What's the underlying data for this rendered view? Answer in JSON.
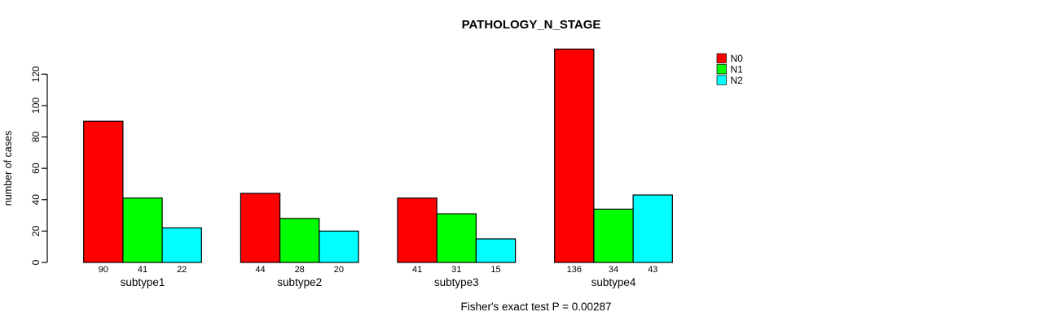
{
  "page": {
    "background": "#FFFFFF",
    "text_color": "#000000"
  },
  "chart_data": {
    "type": "bar",
    "title": "PATHOLOGY_N_STAGE",
    "ylabel": "number of cases",
    "xlabel": "",
    "footer_note": "Fisher's exact test P = 0.00287",
    "categories": [
      "subtype1",
      "subtype2",
      "subtype3",
      "subtype4"
    ],
    "series": [
      {
        "name": "N0",
        "color": "#FF0000",
        "values": [
          90,
          44,
          41,
          136
        ]
      },
      {
        "name": "N1",
        "color": "#00FF00",
        "values": [
          41,
          28,
          31,
          34
        ]
      },
      {
        "name": "N2",
        "color": "#00FFFF",
        "values": [
          22,
          20,
          15,
          43
        ]
      }
    ],
    "bar_value_labels_shown": true,
    "yticks": [
      0,
      20,
      40,
      60,
      80,
      100,
      120
    ],
    "axis_range": [
      0,
      120
    ],
    "grid": "off",
    "legend_position": "top-right",
    "bar_border_color": "#000000"
  }
}
